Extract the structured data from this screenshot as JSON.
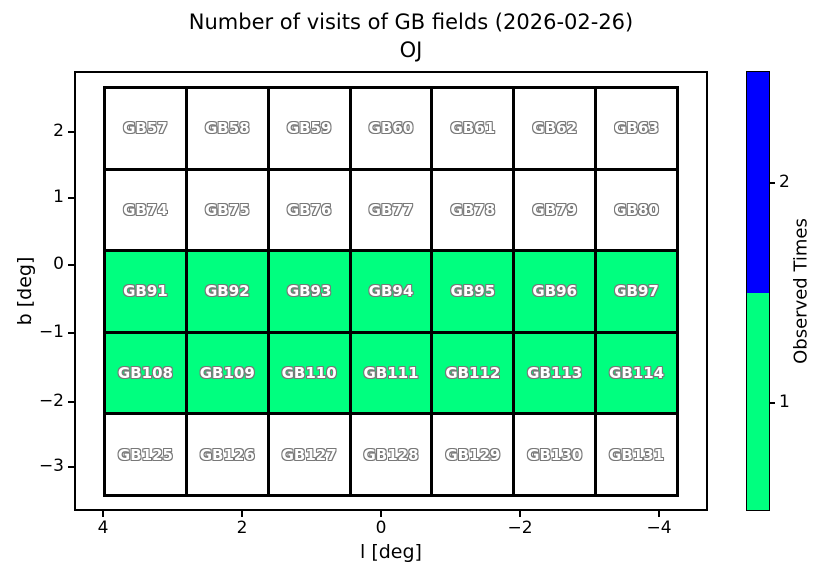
{
  "chart_data": {
    "type": "heatmap",
    "title": "Number of visits of GB fields (2026-02-26)",
    "subtitle": "OJ",
    "xlabel": "l [deg]",
    "ylabel": "b [deg]",
    "x_tick_labels": [
      "4",
      "2",
      "0",
      "−2",
      "−4"
    ],
    "y_tick_labels": [
      "2",
      "1",
      "0",
      "−1",
      "−2",
      "−3"
    ],
    "x_axis_reversed": true,
    "grid_on": false,
    "rows": [
      {
        "fields": [
          "GB57",
          "GB58",
          "GB59",
          "GB60",
          "GB61",
          "GB62",
          "GB63"
        ],
        "visits": [
          0,
          0,
          0,
          0,
          0,
          0,
          0
        ]
      },
      {
        "fields": [
          "GB74",
          "GB75",
          "GB76",
          "GB77",
          "GB78",
          "GB79",
          "GB80"
        ],
        "visits": [
          0,
          0,
          0,
          0,
          0,
          0,
          0
        ]
      },
      {
        "fields": [
          "GB91",
          "GB92",
          "GB93",
          "GB94",
          "GB95",
          "GB96",
          "GB97"
        ],
        "visits": [
          1,
          1,
          1,
          1,
          1,
          1,
          1
        ]
      },
      {
        "fields": [
          "GB108",
          "GB109",
          "GB110",
          "GB111",
          "GB112",
          "GB113",
          "GB114"
        ],
        "visits": [
          1,
          1,
          1,
          1,
          1,
          1,
          1
        ]
      },
      {
        "fields": [
          "GB125",
          "GB126",
          "GB127",
          "GB128",
          "GB129",
          "GB130",
          "GB131"
        ],
        "visits": [
          0,
          0,
          0,
          0,
          0,
          0,
          0
        ]
      }
    ],
    "colorbar": {
      "label": "Observed Times",
      "tick_labels": [
        "1",
        "2"
      ],
      "colors": {
        "1": "#00FF7F",
        "2": "#0000FF",
        "unobserved": "#FFFFFF"
      },
      "cell_border_color": "#000000"
    }
  }
}
